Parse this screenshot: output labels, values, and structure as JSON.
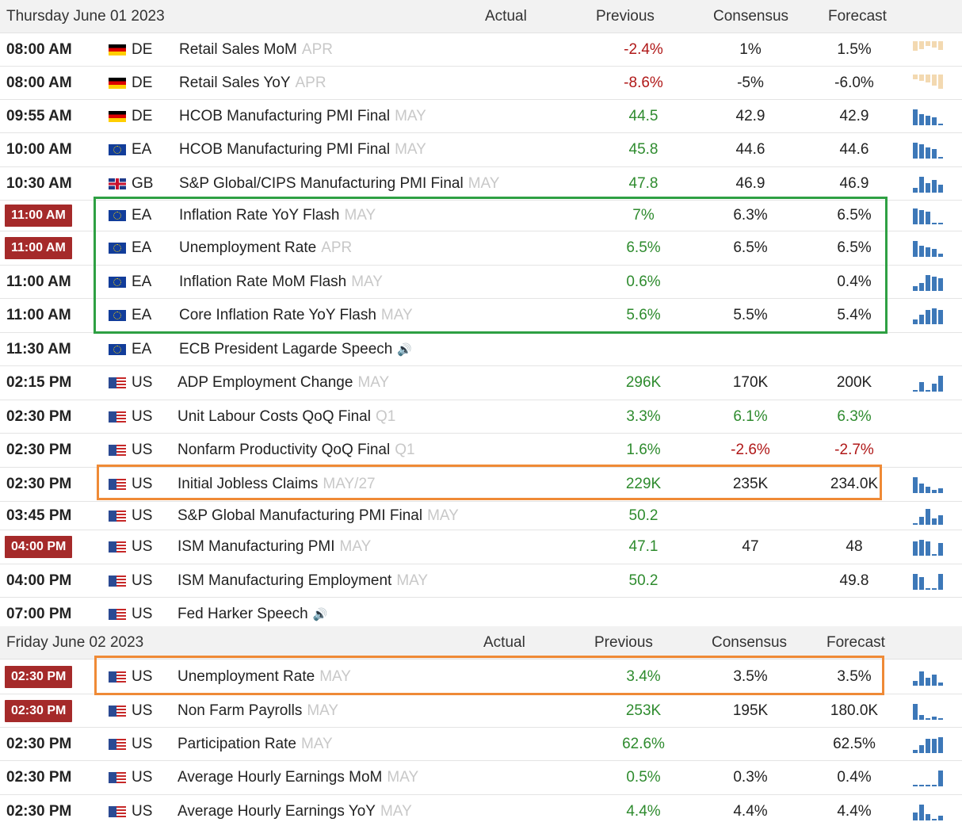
{
  "columns": {
    "actual": "Actual",
    "previous": "Previous",
    "consensus": "Consensus",
    "forecast": "Forecast"
  },
  "colors": {
    "positive": "#2e8b2e",
    "negative": "#b01818",
    "badge": "#a52a2a",
    "spark_blue": "#3d78b8",
    "spark_tan": "#f3d9b1",
    "highlight_green": "#2ea043",
    "highlight_orange": "#ef8a36"
  },
  "days": [
    {
      "date": "Thursday June 01 2023",
      "rows": [
        {
          "time": "08:00 AM",
          "badge": false,
          "flag": "de",
          "country": "DE",
          "event": "Retail Sales MoM",
          "ref": "APR",
          "actual": "-2.4%",
          "actual_color": "red",
          "previous": "1%",
          "previous_color": "black",
          "consensus": "1.5%",
          "consensus_color": "black",
          "spark": [
            0.6,
            0.5,
            0.3,
            0.4,
            0.55
          ],
          "spark_color": "tan"
        },
        {
          "time": "08:00 AM",
          "badge": false,
          "flag": "de",
          "country": "DE",
          "event": "Retail Sales YoY",
          "ref": "APR",
          "actual": "-8.6%",
          "actual_color": "red",
          "previous": "-5%",
          "previous_color": "black",
          "consensus": "-6.0%",
          "consensus_color": "black",
          "spark": [
            0.3,
            0.4,
            0.5,
            0.7,
            0.9
          ],
          "spark_color": "tan"
        },
        {
          "time": "09:55 AM",
          "badge": false,
          "flag": "de",
          "country": "DE",
          "event": "HCOB Manufacturing PMI Final",
          "ref": "MAY",
          "actual": "44.5",
          "actual_color": "green",
          "previous": "42.9",
          "previous_color": "black",
          "consensus": "42.9",
          "consensus_color": "black",
          "spark": [
            1.0,
            0.7,
            0.6,
            0.5,
            0.1
          ],
          "spark_color": "blue"
        },
        {
          "time": "10:00 AM",
          "badge": false,
          "flag": "ea",
          "country": "EA",
          "event": "HCOB Manufacturing PMI Final",
          "ref": "MAY",
          "actual": "45.8",
          "actual_color": "green",
          "previous": "44.6",
          "previous_color": "black",
          "consensus": "44.6",
          "consensus_color": "black",
          "spark": [
            1.0,
            0.9,
            0.7,
            0.6,
            0.1
          ],
          "spark_color": "blue"
        },
        {
          "time": "10:30 AM",
          "badge": false,
          "flag": "gb",
          "country": "GB",
          "event": "S&P Global/CIPS Manufacturing PMI Final",
          "ref": "MAY",
          "actual": "47.8",
          "actual_color": "green",
          "previous": "46.9",
          "previous_color": "black",
          "consensus": "46.9",
          "consensus_color": "black",
          "spark": [
            0.3,
            1.0,
            0.6,
            0.8,
            0.5
          ],
          "spark_color": "blue"
        },
        {
          "time": "11:00 AM",
          "badge": true,
          "flag": "ea",
          "country": "EA",
          "event": "Inflation Rate YoY Flash",
          "ref": "MAY",
          "actual": "7%",
          "actual_color": "green",
          "previous": "6.3%",
          "previous_color": "black",
          "consensus": "6.5%",
          "consensus_color": "black",
          "spark": [
            1.0,
            0.9,
            0.8,
            0.1,
            0.1
          ],
          "spark_color": "blue"
        },
        {
          "time": "11:00 AM",
          "badge": true,
          "flag": "ea",
          "country": "EA",
          "event": "Unemployment Rate",
          "ref": "APR",
          "actual": "6.5%",
          "actual_color": "green",
          "previous": "6.5%",
          "previous_color": "black",
          "consensus": "6.5%",
          "consensus_color": "black",
          "spark": [
            1.0,
            0.7,
            0.6,
            0.5,
            0.2
          ],
          "spark_color": "blue"
        },
        {
          "time": "11:00 AM",
          "badge": false,
          "flag": "ea",
          "country": "EA",
          "event": "Inflation Rate MoM Flash",
          "ref": "MAY",
          "actual": "0.6%",
          "actual_color": "green",
          "previous": "",
          "previous_color": "black",
          "consensus": "0.4%",
          "consensus_color": "black",
          "spark": [
            0.3,
            0.5,
            1.0,
            0.9,
            0.8
          ],
          "spark_color": "blue"
        },
        {
          "time": "11:00 AM",
          "badge": false,
          "flag": "ea",
          "country": "EA",
          "event": "Core Inflation Rate YoY Flash",
          "ref": "MAY",
          "actual": "5.6%",
          "actual_color": "green",
          "previous": "5.5%",
          "previous_color": "black",
          "consensus": "5.4%",
          "consensus_color": "black",
          "spark": [
            0.3,
            0.6,
            0.9,
            1.0,
            0.9
          ],
          "spark_color": "blue"
        },
        {
          "time": "11:30 AM",
          "badge": false,
          "flag": "ea",
          "country": "EA",
          "event": "ECB President Lagarde Speech",
          "ref": "",
          "speech": true,
          "actual": "",
          "actual_color": "black",
          "previous": "",
          "previous_color": "black",
          "consensus": "",
          "consensus_color": "black",
          "spark": [],
          "spark_color": "blue"
        },
        {
          "time": "02:15 PM",
          "badge": false,
          "flag": "us",
          "country": "US",
          "event": "ADP Employment Change",
          "ref": "MAY",
          "actual": "296K",
          "actual_color": "green",
          "previous": "170K",
          "previous_color": "black",
          "consensus": "200K",
          "consensus_color": "black",
          "spark": [
            0.1,
            0.6,
            0.1,
            0.5,
            1.0
          ],
          "spark_color": "blue"
        },
        {
          "time": "02:30 PM",
          "badge": false,
          "flag": "us",
          "country": "US",
          "event": "Unit Labour Costs QoQ Final",
          "ref": "Q1",
          "actual": "3.3%",
          "actual_color": "green",
          "previous": "6.1%",
          "previous_color": "green",
          "consensus": "6.3%",
          "consensus_color": "green",
          "spark": [],
          "spark_color": "blue"
        },
        {
          "time": "02:30 PM",
          "badge": false,
          "flag": "us",
          "country": "US",
          "event": "Nonfarm Productivity QoQ Final",
          "ref": "Q1",
          "actual": "1.6%",
          "actual_color": "green",
          "previous": "-2.6%",
          "previous_color": "red",
          "consensus": "-2.7%",
          "consensus_color": "red",
          "spark": [],
          "spark_color": "blue"
        },
        {
          "time": "02:30 PM",
          "badge": false,
          "flag": "us",
          "country": "US",
          "event": "Initial Jobless Claims",
          "ref": "MAY/27",
          "actual": "229K",
          "actual_color": "green",
          "previous": "235K",
          "previous_color": "black",
          "consensus": "234.0K",
          "consensus_color": "black",
          "spark": [
            1.0,
            0.6,
            0.4,
            0.2,
            0.3
          ],
          "spark_color": "blue"
        },
        {
          "time": "03:45 PM",
          "badge": false,
          "flag": "us",
          "country": "US",
          "event": "S&P Global Manufacturing PMI Final",
          "ref": "MAY",
          "actual": "50.2",
          "actual_color": "green",
          "previous": "",
          "previous_color": "black",
          "consensus": "",
          "consensus_color": "black",
          "spark": [
            0.1,
            0.5,
            1.0,
            0.4,
            0.6
          ],
          "spark_color": "blue"
        },
        {
          "time": "04:00 PM",
          "badge": true,
          "flag": "us",
          "country": "US",
          "event": "ISM Manufacturing PMI",
          "ref": "MAY",
          "actual": "47.1",
          "actual_color": "green",
          "previous": "47",
          "previous_color": "black",
          "consensus": "48",
          "consensus_color": "black",
          "spark": [
            0.9,
            1.0,
            0.9,
            0.1,
            0.8
          ],
          "spark_color": "blue"
        },
        {
          "time": "04:00 PM",
          "badge": false,
          "flag": "us",
          "country": "US",
          "event": "ISM Manufacturing Employment",
          "ref": "MAY",
          "actual": "50.2",
          "actual_color": "green",
          "previous": "",
          "previous_color": "black",
          "consensus": "49.8",
          "consensus_color": "black",
          "spark": [
            1.0,
            0.8,
            0.1,
            0.1,
            1.0
          ],
          "spark_color": "blue"
        },
        {
          "time": "07:00 PM",
          "badge": false,
          "flag": "us",
          "country": "US",
          "event": "Fed Harker Speech",
          "ref": "",
          "speech": true,
          "actual": "",
          "actual_color": "black",
          "previous": "",
          "previous_color": "black",
          "consensus": "",
          "consensus_color": "black",
          "spark": [],
          "spark_color": "blue"
        }
      ]
    },
    {
      "date": "Friday June 02 2023",
      "rows": [
        {
          "time": "02:30 PM",
          "badge": true,
          "flag": "us",
          "country": "US",
          "event": "Unemployment Rate",
          "ref": "MAY",
          "actual": "3.4%",
          "actual_color": "green",
          "previous": "3.5%",
          "previous_color": "black",
          "consensus": "3.5%",
          "consensus_color": "black",
          "spark": [
            0.3,
            0.9,
            0.5,
            0.7,
            0.2
          ],
          "spark_color": "blue"
        },
        {
          "time": "02:30 PM",
          "badge": true,
          "flag": "us",
          "country": "US",
          "event": "Non Farm Payrolls",
          "ref": "MAY",
          "actual": "253K",
          "actual_color": "green",
          "previous": "195K",
          "previous_color": "black",
          "consensus": "180.0K",
          "consensus_color": "black",
          "spark": [
            1.0,
            0.3,
            0.1,
            0.2,
            0.1
          ],
          "spark_color": "blue"
        },
        {
          "time": "02:30 PM",
          "badge": false,
          "flag": "us",
          "country": "US",
          "event": "Participation Rate",
          "ref": "MAY",
          "actual": "62.6%",
          "actual_color": "green",
          "previous": "",
          "previous_color": "black",
          "consensus": "62.5%",
          "consensus_color": "black",
          "spark": [
            0.2,
            0.5,
            0.9,
            0.9,
            1.0
          ],
          "spark_color": "blue"
        },
        {
          "time": "02:30 PM",
          "badge": false,
          "flag": "us",
          "country": "US",
          "event": "Average Hourly Earnings MoM",
          "ref": "MAY",
          "actual": "0.5%",
          "actual_color": "green",
          "previous": "0.3%",
          "previous_color": "black",
          "consensus": "0.4%",
          "consensus_color": "black",
          "spark": [
            0.1,
            0.1,
            0.1,
            0.1,
            1.0
          ],
          "spark_color": "blue"
        },
        {
          "time": "02:30 PM",
          "badge": false,
          "flag": "us",
          "country": "US",
          "event": "Average Hourly Earnings YoY",
          "ref": "MAY",
          "actual": "4.4%",
          "actual_color": "green",
          "previous": "4.4%",
          "previous_color": "black",
          "consensus": "4.4%",
          "consensus_color": "black",
          "spark": [
            0.5,
            1.0,
            0.4,
            0.1,
            0.3
          ],
          "spark_color": "blue"
        }
      ]
    }
  ]
}
